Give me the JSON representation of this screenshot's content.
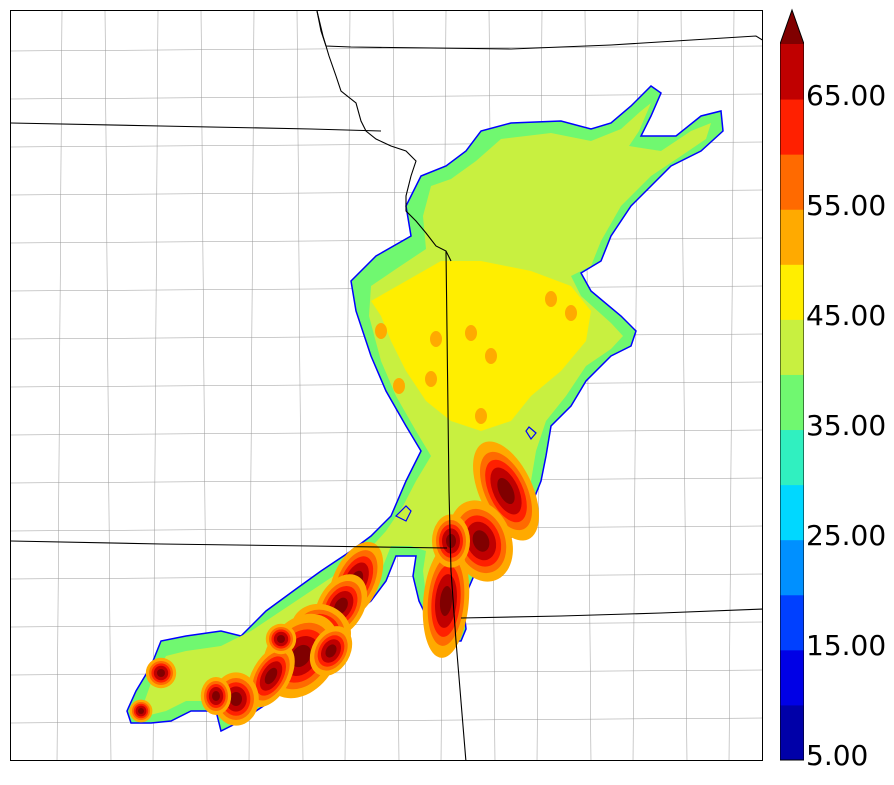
{
  "map": {
    "field_levels": [
      5,
      10,
      15,
      20,
      25,
      30,
      35,
      40,
      45,
      50,
      55,
      60,
      65,
      70
    ],
    "colors": {
      "contour_5": "#0000a8",
      "contour_10": "#0000e6",
      "contour_15": "#0040ff",
      "contour_20": "#0090ff",
      "contour_25": "#00d8ff",
      "contour_30": "#30f0c0",
      "contour_35": "#70f870",
      "contour_40": "#c8f040",
      "contour_45": "#ffee00",
      "contour_50": "#ffaa00",
      "contour_55": "#ff6a00",
      "contour_60": "#ff2000",
      "contour_65": "#c00000",
      "contour_70": "#800000",
      "state_border": "#000000",
      "county_border": "#999999",
      "outline": "#0000ff"
    }
  },
  "colorbar": {
    "labels": [
      "65.00",
      "55.00",
      "45.00",
      "35.00",
      "25.00",
      "15.00",
      "5.00"
    ],
    "extend": "max"
  }
}
